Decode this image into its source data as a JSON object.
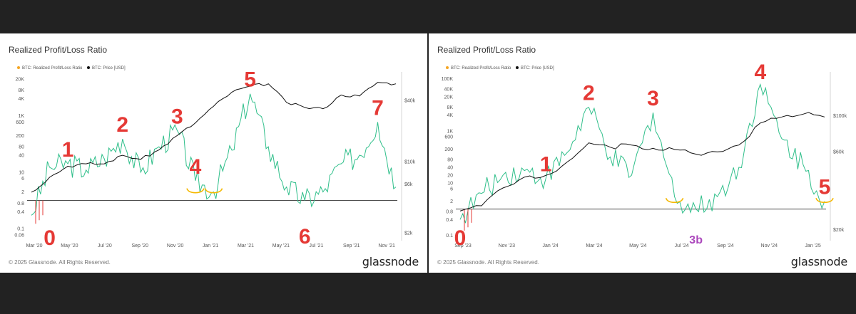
{
  "chart_data": [
    {
      "type": "line",
      "title": "Realized Profit/Loss Ratio",
      "legend": [
        "BTC: Realized Profit/Loss Ratio",
        "BTC: Price [USD]"
      ],
      "legend_placement": "top-left",
      "x_ticks": [
        "Mar '20",
        "May '20",
        "Jul '20",
        "Sep '20",
        "Nov '20",
        "Jan '21",
        "Mar '21",
        "May '21",
        "Jul '21",
        "Sep '21",
        "Nov '21"
      ],
      "y_left_ticks": [
        "20K",
        "8K",
        "4K",
        "1K",
        "600",
        "200",
        "80",
        "40",
        "10",
        "6",
        "2",
        "0.8",
        "0.4",
        "0.1",
        "0.06"
      ],
      "y_right_ticks": [
        "$40k",
        "$10k",
        "$6k",
        "$2k"
      ],
      "y_left_scale": "log",
      "y_right_scale": "log",
      "reference_line": 1,
      "series": [
        {
          "name": "BTC: Realized Profit/Loss Ratio",
          "color": "#2fbf8a",
          "x": [
            "Mar '20",
            "Apr '20",
            "May '20",
            "Jun '20",
            "Jul '20",
            "Aug '20",
            "Sep '20",
            "Oct '20",
            "Nov '20",
            "Dec '20",
            "Jan '21",
            "Feb '21",
            "Mar '21",
            "Apr '21",
            "May '21",
            "Jun '21",
            "Jul '21",
            "Aug '21",
            "Sep '21",
            "Oct '21",
            "Nov '21"
          ],
          "values": [
            0.3,
            15,
            20,
            12,
            30,
            150,
            10,
            80,
            300,
            5,
            2,
            60,
            6000,
            80,
            3,
            1,
            2,
            20,
            40,
            600,
            3
          ]
        },
        {
          "name": "BTC: Price [USD]",
          "color": "#111111",
          "x": [
            "Mar '20",
            "Apr '20",
            "May '20",
            "Jun '20",
            "Jul '20",
            "Aug '20",
            "Sep '20",
            "Oct '20",
            "Nov '20",
            "Dec '20",
            "Jan '21",
            "Feb '21",
            "Mar '21",
            "Apr '21",
            "May '21",
            "Jun '21",
            "Jul '21",
            "Aug '21",
            "Sep '21",
            "Oct '21",
            "Nov '21"
          ],
          "values": [
            5000,
            7000,
            9000,
            9500,
            9500,
            11500,
            10500,
            13000,
            18000,
            24000,
            35000,
            48000,
            55000,
            58000,
            38000,
            34000,
            33000,
            45000,
            44000,
            60000,
            58000
          ]
        }
      ],
      "annotations": [
        {
          "text": "0",
          "color": "#e53935",
          "at": "Apr '20"
        },
        {
          "text": "1",
          "color": "#e53935",
          "at": "May '20"
        },
        {
          "text": "2",
          "color": "#e53935",
          "at": "Aug '20"
        },
        {
          "text": "3",
          "color": "#e53935",
          "at": "Nov '20"
        },
        {
          "text": "4",
          "color": "#e53935",
          "at": "Dec '20"
        },
        {
          "text": "5",
          "color": "#e53935",
          "at": "Mar '21"
        },
        {
          "text": "6",
          "color": "#e53935",
          "at": "Jun '21"
        },
        {
          "text": "7",
          "color": "#e53935",
          "at": "Oct '21"
        }
      ],
      "brackets": [
        {
          "at": "Dec '20",
          "color": "#f5b800"
        },
        {
          "at": "Jan '21",
          "color": "#f5b800"
        }
      ]
    },
    {
      "type": "line",
      "title": "Realized Profit/Loss Ratio",
      "legend": [
        "BTC: Realized Profit/Loss Ratio",
        "BTC: Price [USD]"
      ],
      "legend_placement": "top-left",
      "x_ticks": [
        "Sep '23",
        "Nov '23",
        "Jan '24",
        "Mar '24",
        "May '24",
        "Jul '24",
        "Sep '24",
        "Nov '24",
        "Jan '25"
      ],
      "y_left_ticks": [
        "100K",
        "40K",
        "20K",
        "8K",
        "4K",
        "1K",
        "600",
        "200",
        "80",
        "40",
        "20",
        "10",
        "6",
        "2",
        "0.8",
        "0.4",
        "0.1"
      ],
      "y_right_ticks": [
        "$100k",
        "$60k",
        "$20k"
      ],
      "y_left_scale": "log",
      "y_right_scale": "log",
      "reference_line": 1,
      "series": [
        {
          "name": "BTC: Realized Profit/Loss Ratio",
          "color": "#2fbf8a",
          "x": [
            "Sep '23",
            "Oct '23",
            "Nov '23",
            "Dec '23",
            "Jan '24",
            "Feb '24",
            "Mar '24",
            "Apr '24",
            "May '24",
            "Jun '24",
            "Jul '24",
            "Aug '24",
            "Sep '24",
            "Oct '24",
            "Nov '24",
            "Dec '24",
            "Jan '25",
            "Feb '25"
          ],
          "values": [
            0.4,
            4,
            20,
            30,
            15,
            150,
            8000,
            100,
            20,
            5000,
            3,
            1,
            3,
            40,
            60000,
            500,
            50,
            2
          ]
        },
        {
          "name": "BTC: Price [USD]",
          "color": "#111111",
          "x": [
            "Sep '23",
            "Oct '23",
            "Nov '23",
            "Dec '23",
            "Jan '24",
            "Feb '24",
            "Mar '24",
            "Apr '24",
            "May '24",
            "Jun '24",
            "Jul '24",
            "Aug '24",
            "Sep '24",
            "Oct '24",
            "Nov '24",
            "Dec '24",
            "Jan '25",
            "Feb '25"
          ],
          "values": [
            26000,
            28000,
            36000,
            42000,
            43000,
            52000,
            68000,
            64000,
            66000,
            63000,
            62000,
            58000,
            60000,
            66000,
            90000,
            98000,
            102000,
            98000
          ]
        }
      ],
      "annotations": [
        {
          "text": "0",
          "color": "#e53935",
          "at": "Sep '23"
        },
        {
          "text": "1",
          "color": "#e53935",
          "at": "Jan '24"
        },
        {
          "text": "2",
          "color": "#e53935",
          "at": "Mar '24"
        },
        {
          "text": "3",
          "color": "#e53935",
          "at": "Jun '24"
        },
        {
          "text": "3b",
          "color": "#ab47bc",
          "at": "Aug '24"
        },
        {
          "text": "4",
          "color": "#e53935",
          "at": "Nov '24"
        },
        {
          "text": "5",
          "color": "#e53935",
          "at": "Feb '25"
        }
      ],
      "brackets": [
        {
          "at": "Jul '24",
          "color": "#f5b800"
        },
        {
          "at": "Feb '25",
          "color": "#f5b800"
        }
      ]
    }
  ],
  "footer": {
    "copyright": "© 2025 Glassnode. All Rights Reserved.",
    "brand": "glassnode"
  }
}
